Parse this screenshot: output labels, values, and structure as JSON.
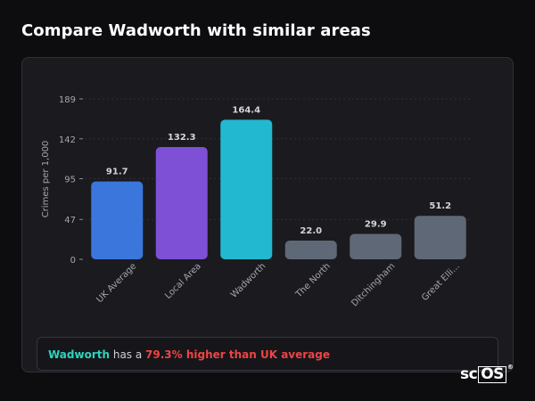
{
  "header": {
    "title": "Compare Wadworth with similar areas"
  },
  "chart_data": {
    "type": "bar",
    "title": "",
    "xlabel": "",
    "ylabel": "Crimes per 1,000",
    "yticks": [
      0,
      47,
      95,
      142,
      189
    ],
    "ylim": [
      0,
      189
    ],
    "grid": true,
    "categories": [
      "UK Average",
      "Local Area",
      "Wadworth",
      "The North",
      "Ditchingham",
      "Great Elli..."
    ],
    "values": [
      91.7,
      132.3,
      164.4,
      22.0,
      29.9,
      51.2
    ],
    "value_labels": [
      "91.7",
      "132.3",
      "164.4",
      "22.0",
      "29.9",
      "51.2"
    ],
    "colors": [
      "#3b76dd",
      "#7d50d6",
      "#22b8d0",
      "#5f6877",
      "#5f6877",
      "#5f6877"
    ]
  },
  "note": {
    "place": "Wadworth",
    "middle": " has a ",
    "diff": "79.3% higher than UK average"
  },
  "logo": {
    "text": "sc",
    "boxed": "OS",
    "mark": "®"
  }
}
